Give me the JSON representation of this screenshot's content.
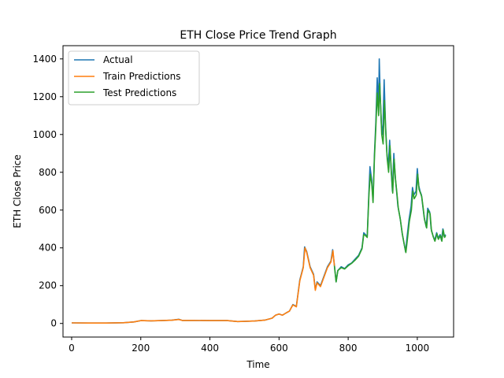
{
  "chart_data": {
    "type": "line",
    "title": "ETH Close Price Trend Graph",
    "xlabel": "Time",
    "ylabel": "ETH Close Price",
    "xlim": [
      -25,
      1105
    ],
    "ylim": [
      -72,
      1470
    ],
    "xticks": [
      0,
      200,
      400,
      600,
      800,
      1000
    ],
    "yticks": [
      0,
      200,
      400,
      600,
      800,
      1000,
      1200,
      1400
    ],
    "grid": false,
    "legend_position": "upper-left",
    "series": [
      {
        "name": "Actual",
        "color": "#1f77b4",
        "points": [
          [
            0,
            3
          ],
          [
            50,
            2
          ],
          [
            100,
            2
          ],
          [
            150,
            4
          ],
          [
            180,
            8
          ],
          [
            200,
            15
          ],
          [
            230,
            14
          ],
          [
            260,
            15
          ],
          [
            290,
            17
          ],
          [
            310,
            22
          ],
          [
            320,
            16
          ],
          [
            350,
            16
          ],
          [
            400,
            15
          ],
          [
            450,
            15
          ],
          [
            480,
            10
          ],
          [
            500,
            11
          ],
          [
            530,
            13
          ],
          [
            560,
            18
          ],
          [
            580,
            28
          ],
          [
            590,
            44
          ],
          [
            600,
            50
          ],
          [
            610,
            44
          ],
          [
            620,
            55
          ],
          [
            630,
            65
          ],
          [
            640,
            100
          ],
          [
            650,
            90
          ],
          [
            660,
            230
          ],
          [
            670,
            300
          ],
          [
            674,
            405
          ],
          [
            680,
            380
          ],
          [
            690,
            300
          ],
          [
            700,
            260
          ],
          [
            705,
            180
          ],
          [
            710,
            220
          ],
          [
            720,
            200
          ],
          [
            730,
            250
          ],
          [
            740,
            300
          ],
          [
            750,
            330
          ],
          [
            755,
            390
          ],
          [
            760,
            310
          ],
          [
            765,
            220
          ],
          [
            770,
            280
          ],
          [
            780,
            300
          ],
          [
            790,
            290
          ],
          [
            800,
            310
          ],
          [
            810,
            320
          ],
          [
            820,
            340
          ],
          [
            830,
            360
          ],
          [
            840,
            400
          ],
          [
            845,
            480
          ],
          [
            850,
            470
          ],
          [
            855,
            460
          ],
          [
            860,
            700
          ],
          [
            863,
            830
          ],
          [
            868,
            760
          ],
          [
            872,
            650
          ],
          [
            876,
            900
          ],
          [
            880,
            1060
          ],
          [
            884,
            1300
          ],
          [
            888,
            1150
          ],
          [
            890,
            1400
          ],
          [
            893,
            1200
          ],
          [
            896,
            1050
          ],
          [
            900,
            1000
          ],
          [
            904,
            1290
          ],
          [
            908,
            1060
          ],
          [
            912,
            900
          ],
          [
            916,
            830
          ],
          [
            920,
            970
          ],
          [
            924,
            820
          ],
          [
            928,
            700
          ],
          [
            932,
            900
          ],
          [
            936,
            780
          ],
          [
            940,
            700
          ],
          [
            944,
            620
          ],
          [
            950,
            560
          ],
          [
            956,
            480
          ],
          [
            962,
            420
          ],
          [
            966,
            380
          ],
          [
            970,
            450
          ],
          [
            976,
            550
          ],
          [
            982,
            620
          ],
          [
            986,
            720
          ],
          [
            990,
            680
          ],
          [
            996,
            700
          ],
          [
            1000,
            820
          ],
          [
            1004,
            730
          ],
          [
            1008,
            700
          ],
          [
            1012,
            680
          ],
          [
            1016,
            620
          ],
          [
            1020,
            560
          ],
          [
            1026,
            510
          ],
          [
            1030,
            610
          ],
          [
            1036,
            590
          ],
          [
            1040,
            500
          ],
          [
            1046,
            460
          ],
          [
            1050,
            440
          ],
          [
            1056,
            480
          ],
          [
            1060,
            450
          ],
          [
            1066,
            470
          ],
          [
            1070,
            440
          ],
          [
            1074,
            500
          ],
          [
            1078,
            460
          ],
          [
            1082,
            470
          ]
        ]
      },
      {
        "name": "Train Predictions",
        "color": "#ff7f0e",
        "points": [
          [
            0,
            3
          ],
          [
            50,
            2
          ],
          [
            100,
            2
          ],
          [
            150,
            4
          ],
          [
            180,
            8
          ],
          [
            200,
            15
          ],
          [
            230,
            14
          ],
          [
            260,
            15
          ],
          [
            290,
            17
          ],
          [
            310,
            21
          ],
          [
            320,
            16
          ],
          [
            350,
            16
          ],
          [
            400,
            15
          ],
          [
            450,
            15
          ],
          [
            480,
            10
          ],
          [
            500,
            11
          ],
          [
            530,
            13
          ],
          [
            560,
            18
          ],
          [
            580,
            28
          ],
          [
            590,
            44
          ],
          [
            600,
            50
          ],
          [
            610,
            44
          ],
          [
            620,
            55
          ],
          [
            630,
            65
          ],
          [
            640,
            98
          ],
          [
            650,
            88
          ],
          [
            660,
            225
          ],
          [
            670,
            295
          ],
          [
            675,
            400
          ],
          [
            680,
            375
          ],
          [
            690,
            295
          ],
          [
            700,
            255
          ],
          [
            705,
            175
          ],
          [
            710,
            215
          ],
          [
            720,
            195
          ],
          [
            730,
            245
          ],
          [
            740,
            295
          ],
          [
            750,
            325
          ],
          [
            756,
            385
          ],
          [
            760,
            305
          ]
        ]
      },
      {
        "name": "Test Predictions",
        "color": "#2ca02c",
        "points": [
          [
            760,
            305
          ],
          [
            765,
            220
          ],
          [
            770,
            280
          ],
          [
            780,
            295
          ],
          [
            790,
            288
          ],
          [
            800,
            305
          ],
          [
            810,
            318
          ],
          [
            820,
            335
          ],
          [
            830,
            355
          ],
          [
            840,
            395
          ],
          [
            845,
            470
          ],
          [
            850,
            465
          ],
          [
            855,
            455
          ],
          [
            860,
            680
          ],
          [
            864,
            790
          ],
          [
            868,
            740
          ],
          [
            872,
            640
          ],
          [
            876,
            880
          ],
          [
            880,
            1030
          ],
          [
            884,
            1220
          ],
          [
            888,
            1100
          ],
          [
            891,
            1270
          ],
          [
            894,
            1150
          ],
          [
            897,
            1000
          ],
          [
            901,
            950
          ],
          [
            905,
            1180
          ],
          [
            909,
            1000
          ],
          [
            913,
            870
          ],
          [
            917,
            800
          ],
          [
            921,
            940
          ],
          [
            925,
            800
          ],
          [
            929,
            690
          ],
          [
            933,
            870
          ],
          [
            937,
            760
          ],
          [
            941,
            690
          ],
          [
            945,
            610
          ],
          [
            951,
            550
          ],
          [
            957,
            470
          ],
          [
            963,
            410
          ],
          [
            967,
            375
          ],
          [
            971,
            440
          ],
          [
            977,
            540
          ],
          [
            983,
            600
          ],
          [
            987,
            700
          ],
          [
            991,
            660
          ],
          [
            997,
            680
          ],
          [
            1001,
            790
          ],
          [
            1005,
            710
          ],
          [
            1009,
            690
          ],
          [
            1013,
            670
          ],
          [
            1017,
            610
          ],
          [
            1021,
            550
          ],
          [
            1027,
            505
          ],
          [
            1031,
            600
          ],
          [
            1037,
            580
          ],
          [
            1041,
            490
          ],
          [
            1047,
            455
          ],
          [
            1051,
            435
          ],
          [
            1057,
            475
          ],
          [
            1061,
            445
          ],
          [
            1067,
            465
          ],
          [
            1071,
            435
          ],
          [
            1075,
            495
          ],
          [
            1079,
            455
          ],
          [
            1082,
            465
          ]
        ]
      }
    ]
  }
}
